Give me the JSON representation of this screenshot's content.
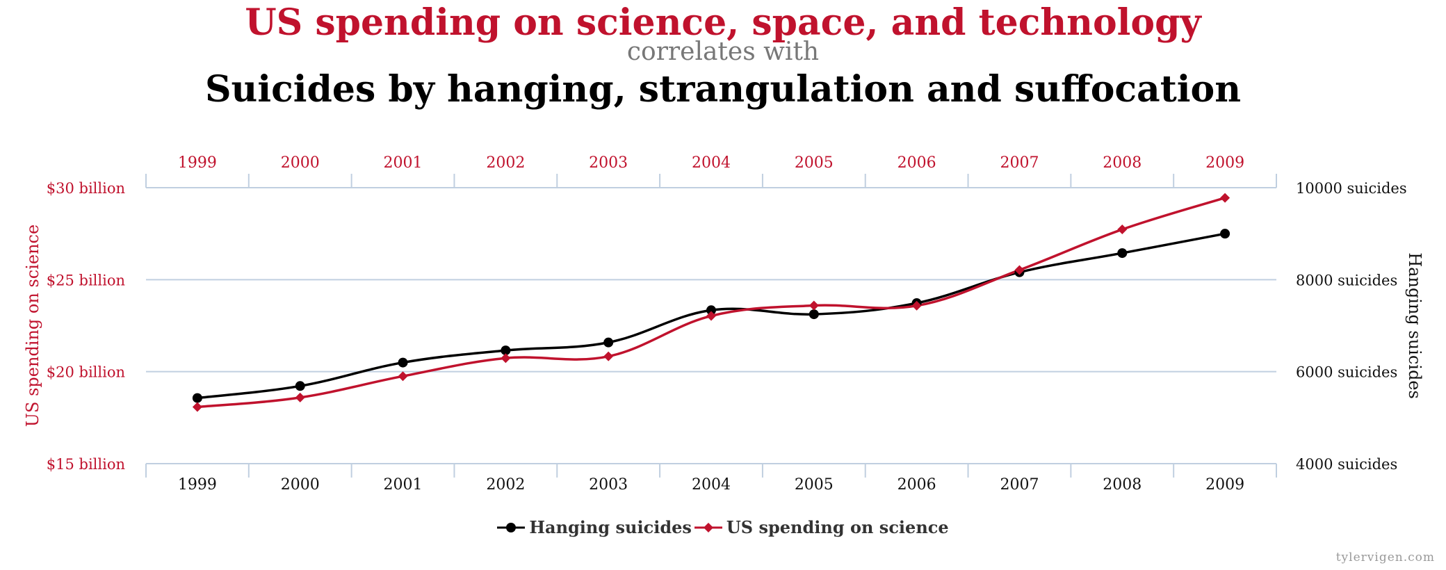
{
  "title": {
    "line1": "US spending on science, space, and technology",
    "line2": "correlates with",
    "line3": "Suicides by hanging, strangulation and suffocation"
  },
  "credit": "tylervigen.com",
  "colors": {
    "spending": "#c0122d",
    "suicides": "#000000",
    "grid": "#c0cfe0",
    "tick_text_top": "#c0122d",
    "tick_text_bottom": "#111111"
  },
  "chart_data": {
    "type": "line",
    "categories": [
      "1999",
      "2000",
      "2001",
      "2002",
      "2003",
      "2004",
      "2005",
      "2006",
      "2007",
      "2008",
      "2009"
    ],
    "series": [
      {
        "name": "Hanging suicides",
        "axis": "right",
        "marker": "circle",
        "values": [
          5427,
          5688,
          6198,
          6462,
          6635,
          7336,
          7248,
          7491,
          8161,
          8578,
          9000
        ]
      },
      {
        "name": "US spending on science",
        "axis": "left",
        "marker": "diamond",
        "values": [
          18.079,
          18.594,
          19.753,
          20.734,
          20.831,
          23.029,
          23.597,
          23.584,
          25.525,
          27.731,
          29.449
        ]
      }
    ],
    "left_axis": {
      "label": "US spending on science",
      "range": [
        15,
        30
      ],
      "ticks": [
        30,
        25,
        20,
        15
      ],
      "tick_labels": [
        "$30 billion",
        "$25 billion",
        "$20 billion",
        "$15 billion"
      ]
    },
    "right_axis": {
      "label": "Hanging suicides",
      "range": [
        4000,
        10000
      ],
      "ticks": [
        10000,
        8000,
        6000,
        4000
      ],
      "tick_labels": [
        "10000 suicides",
        "8000 suicides",
        "6000 suicides",
        "4000 suicides"
      ]
    },
    "legend": [
      {
        "label": "Hanging suicides"
      },
      {
        "label": "US spending on science"
      }
    ]
  }
}
